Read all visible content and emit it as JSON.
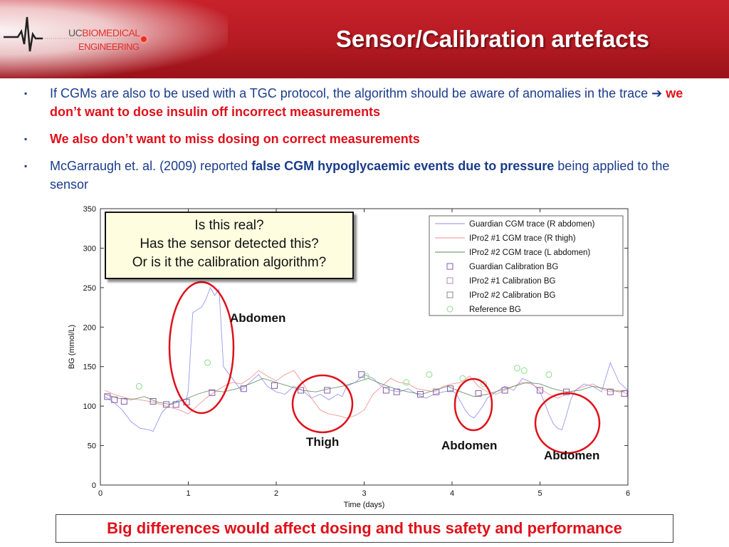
{
  "header": {
    "title": "Sensor/Calibration artefacts",
    "logo_line1_a": "UC",
    "logo_line1_b": "BIOMEDICAL",
    "logo_line2": "ENGINEERING"
  },
  "bullets": [
    {
      "mark": "▪",
      "text_a": "If CGMs are also to be used with a TGC protocol, the algorithm should be aware of anomalies in the trace ",
      "arrow": "➔",
      "text_b": " we don’t want to dose insulin off incorrect measurements"
    },
    {
      "mark": "▪",
      "text": "We also don’t want to miss dosing on correct measurements"
    },
    {
      "mark": "▪",
      "text_a": "McGarraugh et. al. (2009) reported ",
      "text_bold": "false CGM hypoglycaemic events due to pressure",
      "text_b": " being applied to the sensor"
    }
  ],
  "callout": {
    "line1": "Is this real?",
    "line2": "Has the sensor detected this?",
    "line3": "Or is it the calibration algorithm?"
  },
  "region_labels": {
    "r1": "Abdomen",
    "r2": "Thigh",
    "r3": "Abdomen",
    "r4": "Abdomen"
  },
  "footer": "Big differences would affect dosing and thus safety and performance",
  "colors": {
    "header_red": "#b51a22",
    "guardian": "#8c8cf0",
    "ipro1": "#f08c8c",
    "ipro2": "#5a8c5a",
    "reference": "#8cdc8c",
    "circle": "#e0101a",
    "text_blue": "#1a3c8c"
  },
  "chart_data": {
    "type": "line",
    "xlabel": "Time (days)",
    "ylabel": "BG (mmol/L)",
    "xlim": [
      0,
      6
    ],
    "ylim": [
      0,
      350
    ],
    "xticks": [
      0,
      1,
      2,
      3,
      4,
      5,
      6
    ],
    "yticks": [
      0,
      50,
      100,
      150,
      200,
      250,
      300,
      350
    ],
    "legend_position": "top-right",
    "series": [
      {
        "name": "Guardian CGM trace (R abdomen)",
        "kind": "line",
        "x": [
          0.05,
          0.15,
          0.25,
          0.35,
          0.45,
          0.55,
          0.6,
          0.7,
          0.8,
          0.9,
          0.97,
          1.0,
          1.02,
          1.05,
          1.1,
          1.15,
          1.2,
          1.25,
          1.3,
          1.35,
          1.4,
          1.5,
          1.6,
          1.7,
          1.8,
          1.9,
          2.0,
          2.1,
          2.2,
          2.3,
          2.4,
          2.5,
          2.6,
          2.7,
          2.75,
          2.8,
          2.9,
          3.0,
          3.1,
          3.2,
          3.3,
          3.4,
          3.5,
          3.6,
          3.7,
          3.8,
          3.9,
          4.0,
          4.05,
          4.1,
          4.15,
          4.2,
          4.25,
          4.3,
          4.35,
          4.4,
          4.5,
          4.6,
          4.7,
          4.8,
          4.9,
          5.0,
          5.05,
          5.1,
          5.15,
          5.2,
          5.25,
          5.3,
          5.35,
          5.4,
          5.5,
          5.6,
          5.7,
          5.8,
          5.9,
          6.0
        ],
        "y": [
          112,
          105,
          95,
          80,
          72,
          70,
          68,
          92,
          103,
          108,
          104,
          120,
          160,
          218,
          222,
          225,
          235,
          250,
          240,
          248,
          150,
          135,
          120,
          130,
          140,
          125,
          118,
          115,
          125,
          120,
          110,
          115,
          108,
          115,
          112,
          125,
          130,
          140,
          135,
          125,
          120,
          118,
          122,
          115,
          110,
          115,
          118,
          120,
          115,
          105,
          95,
          88,
          85,
          92,
          100,
          110,
          118,
          125,
          120,
          135,
          130,
          118,
          105,
          90,
          78,
          72,
          70,
          88,
          108,
          120,
          128,
          125,
          118,
          155,
          130,
          120
        ]
      },
      {
        "name": "IPro2 #1 CGM trace (R thigh)",
        "kind": "line",
        "x": [
          0.05,
          0.15,
          0.3,
          0.45,
          0.6,
          0.75,
          0.9,
          1.0,
          1.1,
          1.2,
          1.3,
          1.4,
          1.5,
          1.6,
          1.7,
          1.8,
          1.9,
          2.0,
          2.1,
          2.2,
          2.3,
          2.4,
          2.5,
          2.6,
          2.7,
          2.8,
          2.9,
          3.0,
          3.1,
          3.2,
          3.3,
          3.4,
          3.5,
          3.6,
          3.7,
          3.8,
          3.9,
          4.0,
          4.1,
          4.2,
          4.3,
          4.4,
          4.5,
          4.6,
          4.7,
          4.8,
          4.9,
          5.0,
          5.1,
          5.2,
          5.3,
          5.4,
          5.5,
          5.6,
          5.7,
          5.8,
          5.9,
          6.0
        ],
        "y": [
          120,
          115,
          110,
          108,
          105,
          100,
          95,
          90,
          100,
          110,
          118,
          125,
          130,
          128,
          135,
          145,
          138,
          132,
          140,
          145,
          130,
          110,
          95,
          90,
          88,
          85,
          88,
          95,
          115,
          125,
          135,
          130,
          128,
          122,
          120,
          118,
          125,
          128,
          130,
          138,
          125,
          118,
          115,
          120,
          125,
          130,
          128,
          122,
          115,
          110,
          115,
          120,
          125,
          128,
          122,
          118,
          120,
          115
        ]
      },
      {
        "name": "IPro2 #2 CGM trace (L abdomen)",
        "kind": "line",
        "x": [
          0.05,
          0.2,
          0.35,
          0.5,
          0.65,
          0.8,
          0.95,
          1.1,
          1.25,
          1.4,
          1.55,
          1.7,
          1.85,
          2.0,
          2.15,
          2.3,
          2.45,
          2.6,
          2.75,
          2.9,
          3.05,
          3.2,
          3.35,
          3.5,
          3.65,
          3.8,
          3.95,
          4.1,
          4.25,
          4.4,
          4.55,
          4.7,
          4.85,
          5.0,
          5.15,
          5.3,
          5.45,
          5.6,
          5.75,
          5.9,
          6.0
        ],
        "y": [
          115,
          110,
          108,
          112,
          105,
          102,
          108,
          115,
          120,
          118,
          122,
          128,
          135,
          130,
          125,
          120,
          118,
          122,
          125,
          130,
          135,
          128,
          122,
          118,
          115,
          120,
          125,
          118,
          112,
          115,
          120,
          125,
          130,
          128,
          122,
          118,
          120,
          125,
          122,
          118,
          120
        ]
      },
      {
        "name": "Guardian Calibration BG",
        "kind": "marker",
        "x": [
          0.08,
          0.16,
          0.27,
          0.6,
          0.75,
          0.86,
          0.98,
          1.27,
          1.63,
          1.98,
          2.28,
          2.58,
          2.97,
          3.25,
          3.37,
          3.64,
          3.82,
          3.98,
          4.3,
          4.6,
          5.0,
          5.3,
          5.8,
          5.96
        ],
        "y": [
          112,
          108,
          106,
          106,
          102,
          102,
          105,
          117,
          122,
          126,
          120,
          120,
          140,
          120,
          118,
          115,
          118,
          122,
          116,
          120,
          120,
          118,
          118,
          116
        ]
      },
      {
        "name": "IPro2 #1 Calibration BG",
        "kind": "marker",
        "x": [],
        "y": []
      },
      {
        "name": "IPro2 #2 Calibration BG",
        "kind": "marker",
        "x": [],
        "y": []
      },
      {
        "name": "Reference BG",
        "kind": "marker",
        "x": [
          0.44,
          1.22,
          3.02,
          3.48,
          3.74,
          4.12,
          4.36,
          4.74,
          4.82,
          5.1
        ],
        "y": [
          125,
          155,
          138,
          130,
          140,
          135,
          128,
          148,
          145,
          140
        ]
      }
    ]
  }
}
